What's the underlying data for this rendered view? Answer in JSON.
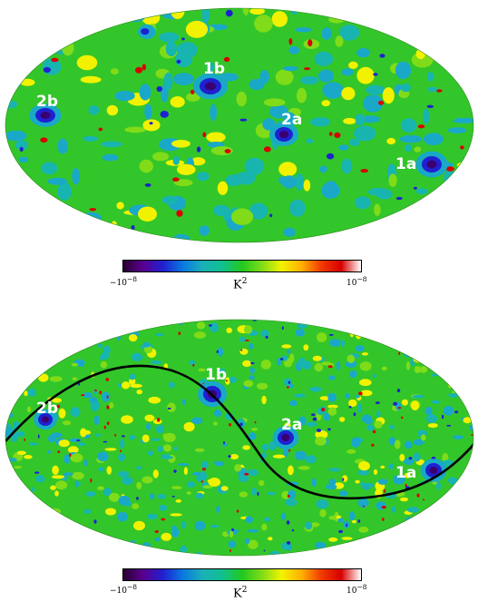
{
  "colormap": {
    "stops": [
      "#2a0030",
      "#5a0090",
      "#2020d0",
      "#0a78e0",
      "#1ab0b8",
      "#10c090",
      "#22c81e",
      "#80dc18",
      "#f2f200",
      "#ffb000",
      "#f03a00",
      "#d80000",
      "#ffffff"
    ]
  },
  "panels": [
    {
      "background_color": "#33c62a",
      "labels": {
        "l1b": "1b",
        "l2b": "2b",
        "l2a": "2a",
        "l1a": "1a"
      },
      "colorbar": {
        "min_label": "−10",
        "min_exp": "−8",
        "max_label": "10",
        "max_exp": "−8",
        "unit": "K",
        "unit_exp": "2"
      }
    },
    {
      "background_color": "#33c62a",
      "labels": {
        "l1b": "1b",
        "l2b": "2b",
        "l2a": "2a",
        "l1a": "1a"
      },
      "colorbar": {
        "min_label": "−10",
        "min_exp": "−8",
        "max_label": "10",
        "max_exp": "−8",
        "unit": "K",
        "unit_exp": "2"
      }
    }
  ]
}
